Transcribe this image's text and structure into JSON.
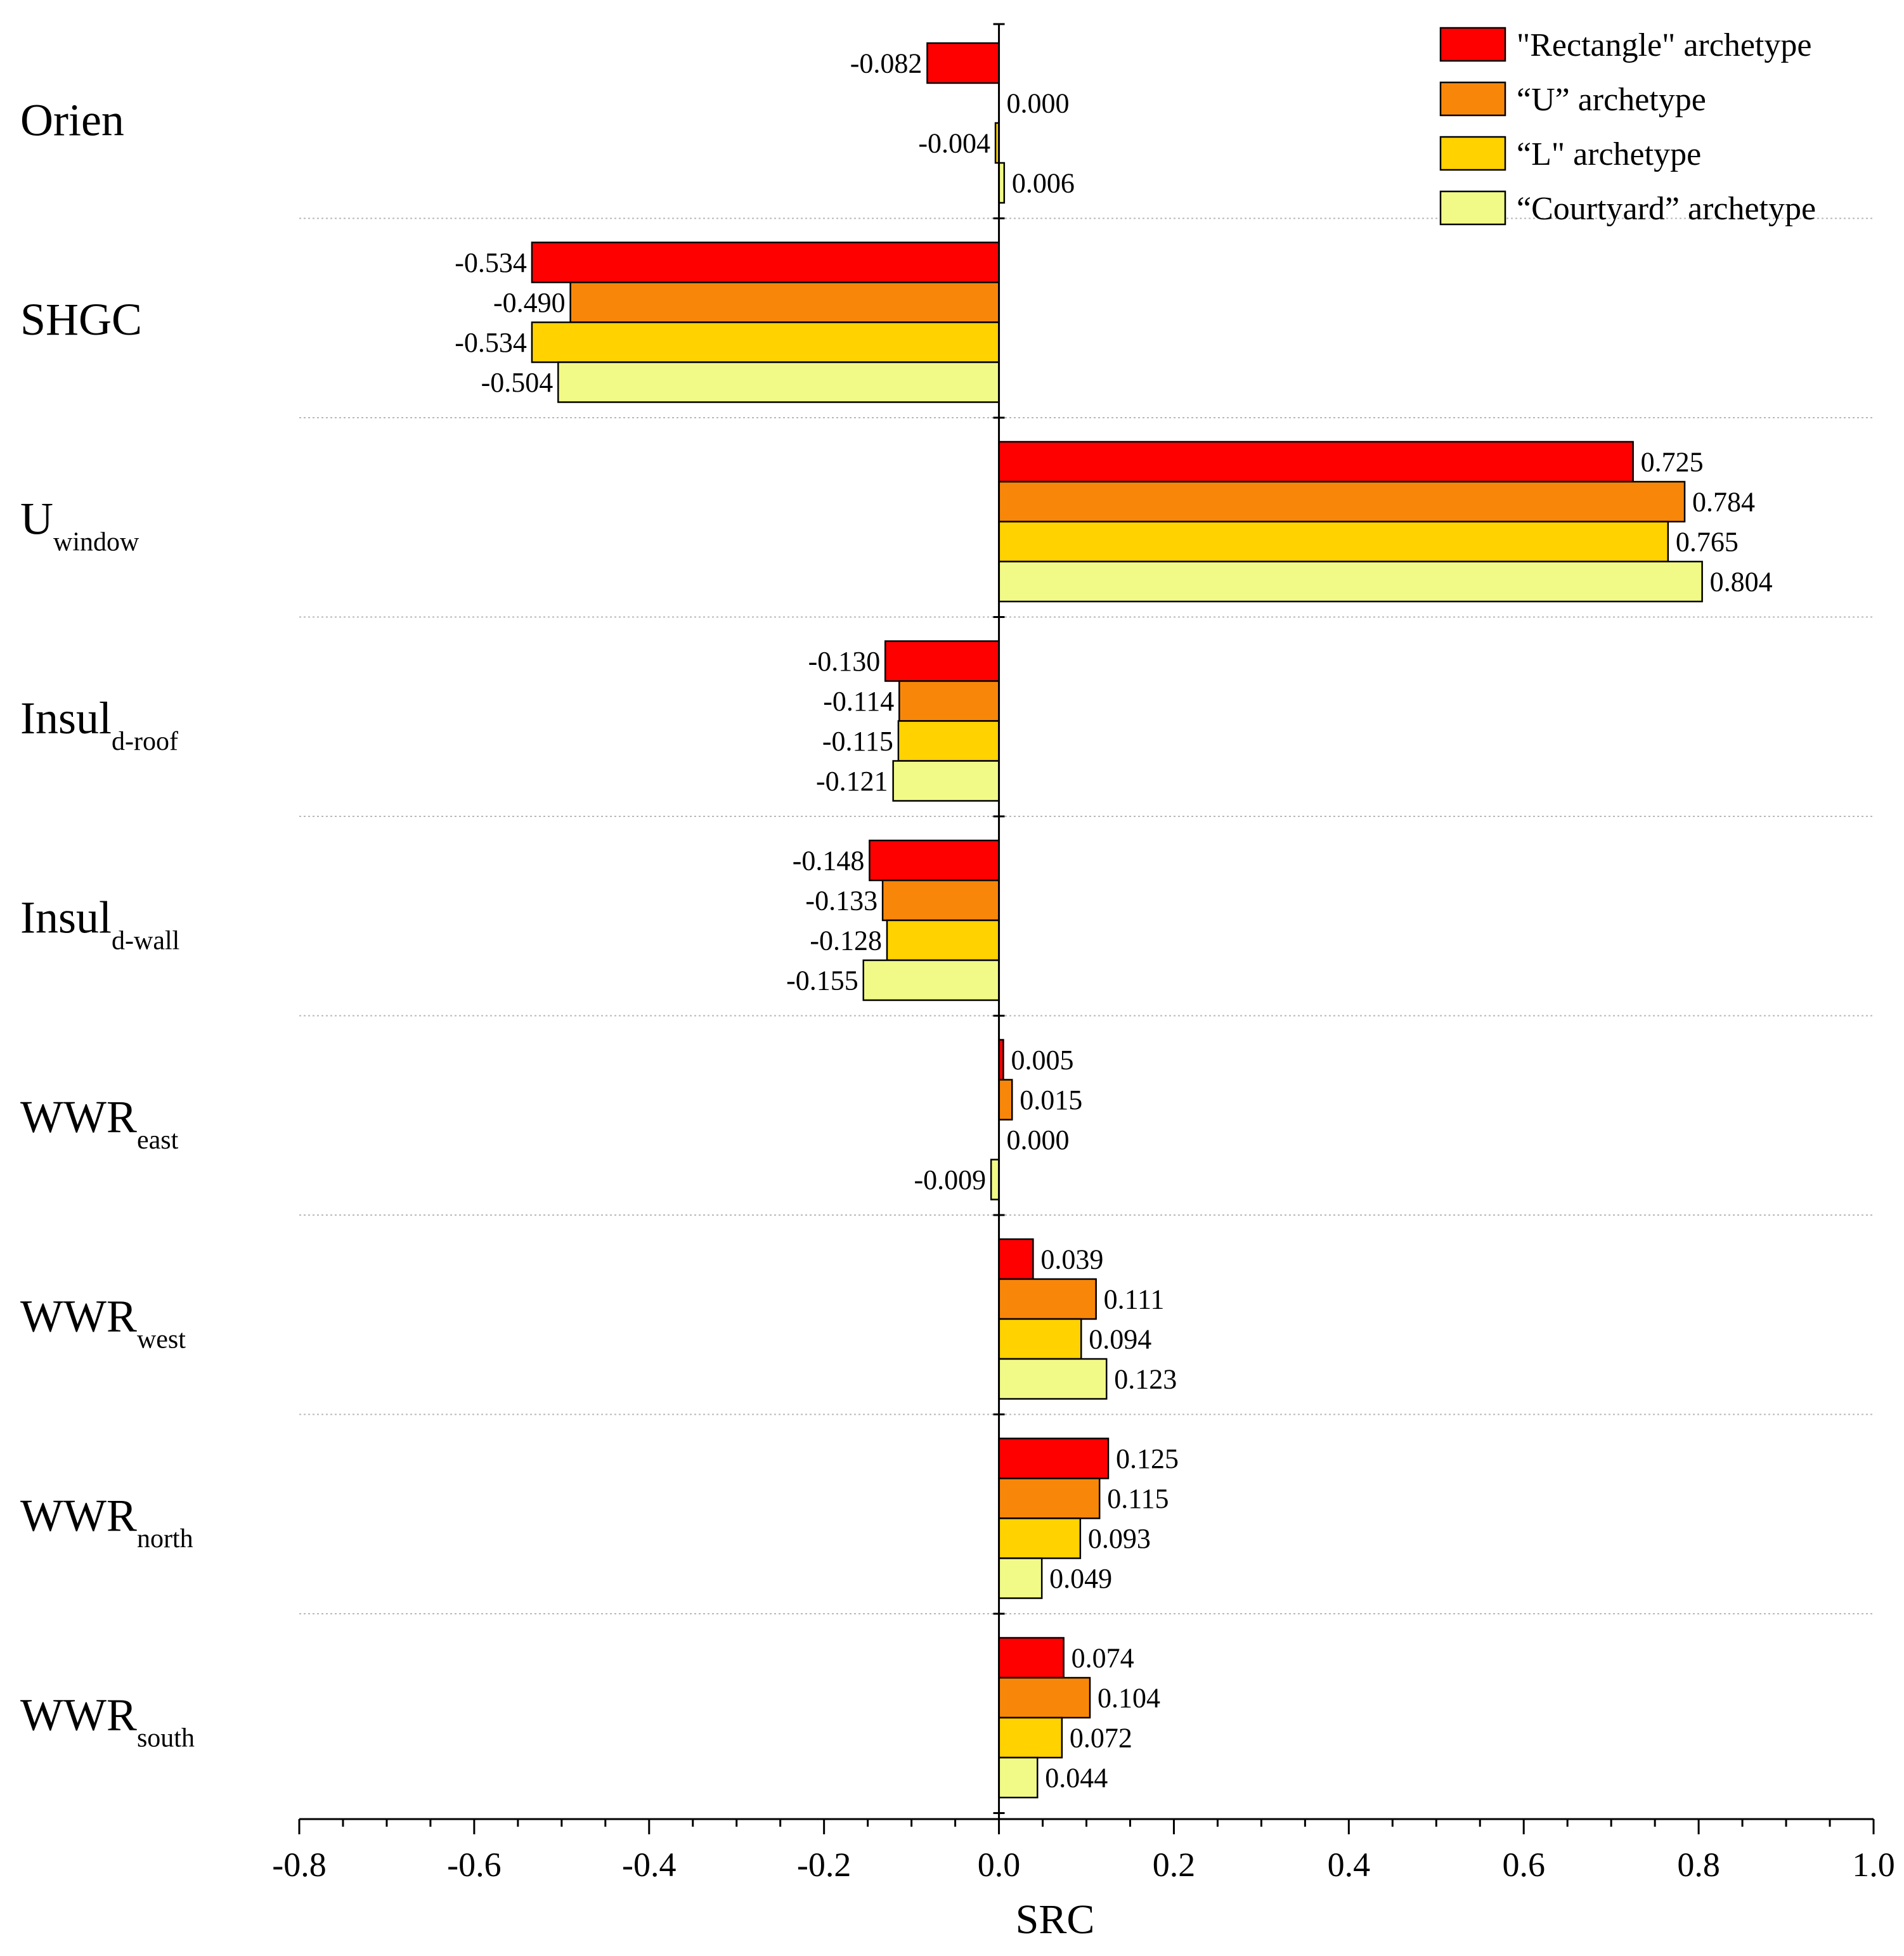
{
  "chart_data": {
    "type": "bar",
    "orientation": "horizontal",
    "xlabel": "SRC",
    "xlim": [
      -0.8,
      1.0
    ],
    "x_ticks": [
      "-0.8",
      "-0.6",
      "-0.4",
      "-0.2",
      "0.0",
      "0.2",
      "0.4",
      "0.6",
      "0.8",
      "1.0"
    ],
    "legend_position": "top-right",
    "categories": [
      {
        "main": "Orien",
        "sub": ""
      },
      {
        "main": "SHGC",
        "sub": ""
      },
      {
        "main": "U",
        "sub": "window"
      },
      {
        "main": "Insul",
        "sub": "d-roof"
      },
      {
        "main": "Insul",
        "sub": "d-wall"
      },
      {
        "main": "WWR",
        "sub": "east"
      },
      {
        "main": "WWR",
        "sub": "west"
      },
      {
        "main": "WWR",
        "sub": "north"
      },
      {
        "main": "WWR",
        "sub": "south"
      }
    ],
    "series": [
      {
        "name": "\"Rectangle\" archetype",
        "color": "#ff0000",
        "values": [
          -0.082,
          -0.534,
          0.725,
          -0.13,
          -0.148,
          0.005,
          0.039,
          0.125,
          0.074
        ],
        "labels": [
          "-0.082",
          "-0.534",
          "0.725",
          "-0.130",
          "-0.148",
          "0.005",
          "0.039",
          "0.125",
          "0.074"
        ]
      },
      {
        "name": "“U” archetype",
        "color": "#f88709",
        "values": [
          0.0,
          -0.49,
          0.784,
          -0.114,
          -0.133,
          0.015,
          0.111,
          0.115,
          0.104
        ],
        "labels": [
          "0.000",
          "-0.490",
          "0.784",
          "-0.114",
          "-0.133",
          "0.015",
          "0.111",
          "0.115",
          "0.104"
        ]
      },
      {
        "name": "“L\" archetype",
        "color": "#ffd200",
        "values": [
          -0.004,
          -0.534,
          0.765,
          -0.115,
          -0.128,
          0.0,
          0.094,
          0.093,
          0.072
        ],
        "labels": [
          "-0.004",
          "-0.534",
          "0.765",
          "-0.115",
          "-0.128",
          "0.000",
          "0.094",
          "0.093",
          "0.072"
        ]
      },
      {
        "name": "“Courtyard” archetype",
        "color": "#f2fa87",
        "values": [
          0.006,
          -0.504,
          0.804,
          -0.121,
          -0.155,
          -0.009,
          0.123,
          0.049,
          0.044
        ],
        "labels": [
          "0.006",
          "-0.504",
          "0.804",
          "-0.121",
          "-0.155",
          "-0.009",
          "0.123",
          "0.049",
          "0.044"
        ]
      }
    ]
  }
}
